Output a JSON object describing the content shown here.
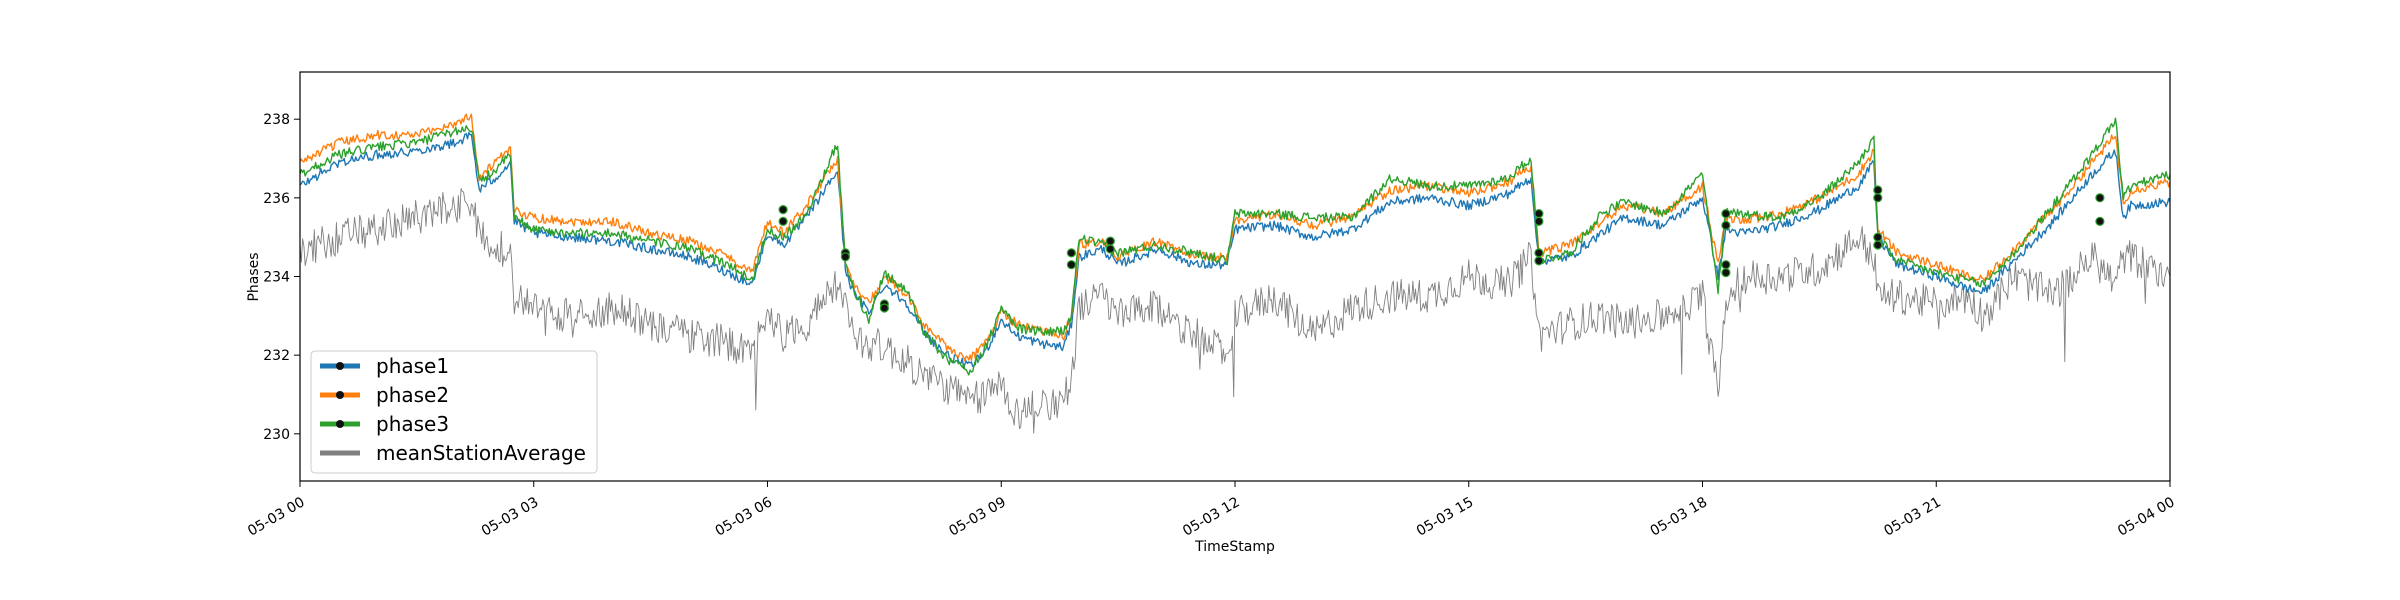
{
  "chart_data": {
    "type": "line",
    "xlabel": "TimeStamp",
    "ylabel": "Phases",
    "x_ticks": [
      "05-03 00",
      "05-03 03",
      "05-03 06",
      "05-03 09",
      "05-03 12",
      "05-03 15",
      "05-03 18",
      "05-03 21",
      "05-04 00"
    ],
    "x_range_hours": [
      0,
      24
    ],
    "y_ticks": [
      230,
      232,
      234,
      236,
      238
    ],
    "ylim": [
      228.8,
      239.2
    ],
    "grid": false,
    "legend_position": "lower-left",
    "series": [
      {
        "name": "phase1",
        "color": "#1f77b4",
        "x": [
          0.0,
          0.5,
          1.0,
          1.5,
          2.0,
          2.2,
          2.3,
          2.5,
          2.7,
          2.75,
          3.0,
          3.5,
          4.0,
          4.5,
          5.0,
          5.5,
          5.8,
          6.0,
          6.2,
          6.5,
          6.9,
          7.0,
          7.1,
          7.3,
          7.5,
          7.8,
          8.0,
          8.3,
          8.6,
          8.8,
          9.0,
          9.2,
          9.5,
          9.8,
          9.9,
          10.0,
          10.3,
          10.5,
          11.0,
          11.5,
          11.9,
          12.0,
          12.5,
          13.0,
          13.5,
          14.0,
          14.5,
          15.0,
          15.5,
          15.8,
          15.9,
          16.3,
          16.7,
          17.0,
          17.5,
          18.0,
          18.2,
          18.3,
          18.5,
          19.0,
          19.5,
          20.0,
          20.2,
          20.25,
          20.5,
          21.0,
          21.4,
          21.6,
          22.0,
          22.5,
          23.0,
          23.3,
          23.4,
          23.5,
          24.0
        ],
        "y": [
          236.3,
          236.9,
          237.1,
          237.2,
          237.4,
          237.6,
          236.2,
          236.5,
          236.9,
          235.4,
          235.1,
          235.0,
          234.9,
          234.7,
          234.5,
          234.1,
          233.8,
          235.1,
          234.8,
          235.5,
          236.7,
          234.2,
          233.6,
          233.1,
          233.8,
          233.3,
          232.6,
          232.0,
          231.7,
          232.1,
          232.9,
          232.5,
          232.3,
          232.2,
          232.8,
          234.5,
          234.7,
          234.3,
          234.7,
          234.3,
          234.3,
          235.2,
          235.3,
          235.0,
          235.2,
          235.9,
          236.0,
          235.8,
          236.1,
          236.5,
          234.4,
          234.5,
          235.1,
          235.5,
          235.3,
          236.0,
          234.0,
          235.2,
          235.1,
          235.3,
          235.7,
          236.3,
          236.9,
          235.0,
          234.3,
          234.0,
          233.7,
          233.6,
          234.4,
          235.4,
          236.6,
          237.2,
          235.5,
          235.8,
          235.9
        ]
      },
      {
        "name": "phase2",
        "color": "#ff7f0e",
        "x": [
          0.0,
          0.5,
          1.0,
          1.5,
          2.0,
          2.2,
          2.3,
          2.5,
          2.7,
          2.75,
          3.0,
          3.5,
          4.0,
          4.5,
          5.0,
          5.5,
          5.8,
          6.0,
          6.2,
          6.5,
          6.9,
          7.0,
          7.1,
          7.3,
          7.5,
          7.8,
          8.0,
          8.3,
          8.6,
          8.8,
          9.0,
          9.2,
          9.5,
          9.8,
          9.9,
          10.0,
          10.3,
          10.5,
          11.0,
          11.5,
          11.9,
          12.0,
          12.5,
          13.0,
          13.5,
          14.0,
          14.5,
          15.0,
          15.5,
          15.8,
          15.9,
          16.3,
          16.7,
          17.0,
          17.5,
          18.0,
          18.2,
          18.3,
          18.5,
          19.0,
          19.5,
          20.0,
          20.2,
          20.25,
          20.5,
          21.0,
          21.4,
          21.6,
          22.0,
          22.5,
          23.0,
          23.3,
          23.4,
          23.5,
          24.0
        ],
        "y": [
          236.9,
          237.4,
          237.6,
          237.6,
          237.9,
          238.1,
          236.5,
          236.9,
          237.2,
          235.7,
          235.5,
          235.4,
          235.4,
          235.1,
          234.9,
          234.5,
          234.1,
          235.4,
          235.1,
          235.8,
          237.0,
          234.4,
          233.8,
          233.3,
          234.0,
          233.5,
          232.8,
          232.2,
          231.9,
          232.3,
          233.1,
          232.8,
          232.6,
          232.5,
          233.0,
          234.8,
          234.9,
          234.5,
          234.9,
          234.5,
          234.5,
          235.4,
          235.6,
          235.3,
          235.5,
          236.2,
          236.3,
          236.1,
          236.4,
          236.8,
          234.6,
          234.8,
          235.4,
          235.8,
          235.6,
          236.3,
          234.3,
          235.5,
          235.4,
          235.6,
          236.0,
          236.6,
          237.2,
          235.2,
          234.6,
          234.3,
          234.0,
          233.9,
          234.7,
          235.7,
          236.9,
          237.6,
          235.9,
          236.2,
          236.4
        ]
      },
      {
        "name": "phase3",
        "color": "#2ca02c",
        "x": [
          0.0,
          0.5,
          1.0,
          1.5,
          2.0,
          2.2,
          2.3,
          2.5,
          2.7,
          2.75,
          3.0,
          3.5,
          4.0,
          4.5,
          5.0,
          5.5,
          5.8,
          6.0,
          6.2,
          6.5,
          6.9,
          7.0,
          7.1,
          7.3,
          7.5,
          7.8,
          8.0,
          8.3,
          8.6,
          8.8,
          9.0,
          9.2,
          9.5,
          9.8,
          9.9,
          10.0,
          10.3,
          10.5,
          11.0,
          11.5,
          11.9,
          12.0,
          12.5,
          13.0,
          13.5,
          14.0,
          14.5,
          15.0,
          15.5,
          15.8,
          15.9,
          16.3,
          16.7,
          17.0,
          17.5,
          18.0,
          18.2,
          18.3,
          18.5,
          19.0,
          19.5,
          20.0,
          20.2,
          20.25,
          20.5,
          21.0,
          21.4,
          21.6,
          22.0,
          22.5,
          23.0,
          23.3,
          23.4,
          23.5,
          24.0
        ],
        "y": [
          236.6,
          237.1,
          237.3,
          237.4,
          237.7,
          237.8,
          236.4,
          236.7,
          237.1,
          235.5,
          235.2,
          235.1,
          235.1,
          234.9,
          234.7,
          234.3,
          233.9,
          235.2,
          235.0,
          235.6,
          237.4,
          234.3,
          233.7,
          232.9,
          234.1,
          233.6,
          232.6,
          231.9,
          231.6,
          232.2,
          233.2,
          232.7,
          232.6,
          232.6,
          233.0,
          235.0,
          234.8,
          234.6,
          234.8,
          234.6,
          234.4,
          235.6,
          235.6,
          235.5,
          235.5,
          236.5,
          236.3,
          236.3,
          236.5,
          237.0,
          234.4,
          234.6,
          235.6,
          235.9,
          235.6,
          236.6,
          233.6,
          235.7,
          235.6,
          235.5,
          236.0,
          236.9,
          237.5,
          235.0,
          234.4,
          234.1,
          233.9,
          233.8,
          234.6,
          235.8,
          237.1,
          238.0,
          236.0,
          236.3,
          236.6
        ]
      },
      {
        "name": "meanStationAverage",
        "color": "#808080",
        "x": [
          0.0,
          0.5,
          1.0,
          1.5,
          2.0,
          2.2,
          2.3,
          2.5,
          2.7,
          2.75,
          3.0,
          3.5,
          4.0,
          4.5,
          5.0,
          5.5,
          5.8,
          6.0,
          6.2,
          6.5,
          6.9,
          7.0,
          7.1,
          7.3,
          7.5,
          7.8,
          8.0,
          8.3,
          8.6,
          8.8,
          9.0,
          9.2,
          9.5,
          9.8,
          9.9,
          10.0,
          10.3,
          10.5,
          11.0,
          11.5,
          11.9,
          12.0,
          12.5,
          13.0,
          13.5,
          14.0,
          14.5,
          15.0,
          15.5,
          15.8,
          15.9,
          16.3,
          16.7,
          17.0,
          17.5,
          18.0,
          18.2,
          18.3,
          18.5,
          19.0,
          19.5,
          20.0,
          20.2,
          20.25,
          20.5,
          21.0,
          21.4,
          21.6,
          22.0,
          22.5,
          23.0,
          23.3,
          23.4,
          23.5,
          24.0
        ],
        "y": [
          234.6,
          235.0,
          235.2,
          235.5,
          235.8,
          236.0,
          235.0,
          234.8,
          234.6,
          233.5,
          233.2,
          233.0,
          233.2,
          232.8,
          232.5,
          232.3,
          232.0,
          233.2,
          232.5,
          232.8,
          233.8,
          233.2,
          232.5,
          232.3,
          232.2,
          231.8,
          231.5,
          231.2,
          230.8,
          231.0,
          231.3,
          230.5,
          230.8,
          230.8,
          231.5,
          233.2,
          233.5,
          233.0,
          233.2,
          232.5,
          232.0,
          233.0,
          233.5,
          232.5,
          233.2,
          233.5,
          233.5,
          234.0,
          233.8,
          234.5,
          232.5,
          232.8,
          233.0,
          232.8,
          233.0,
          233.5,
          231.0,
          233.5,
          234.0,
          234.0,
          234.2,
          235.0,
          234.5,
          233.5,
          233.5,
          233.3,
          233.5,
          233.0,
          234.0,
          233.5,
          234.5,
          233.8,
          234.5,
          234.5,
          234.0
        ]
      }
    ],
    "markers": [
      {
        "x": 6.2,
        "y": 235.7
      },
      {
        "x": 6.2,
        "y": 235.4
      },
      {
        "x": 7.0,
        "y": 234.6
      },
      {
        "x": 7.0,
        "y": 234.5
      },
      {
        "x": 7.5,
        "y": 233.3
      },
      {
        "x": 7.5,
        "y": 233.2
      },
      {
        "x": 9.9,
        "y": 234.6
      },
      {
        "x": 9.9,
        "y": 234.3
      },
      {
        "x": 10.4,
        "y": 234.9
      },
      {
        "x": 10.4,
        "y": 234.7
      },
      {
        "x": 15.9,
        "y": 235.6
      },
      {
        "x": 15.9,
        "y": 235.4
      },
      {
        "x": 15.9,
        "y": 234.6
      },
      {
        "x": 15.9,
        "y": 234.4
      },
      {
        "x": 18.3,
        "y": 235.6
      },
      {
        "x": 18.3,
        "y": 235.3
      },
      {
        "x": 18.3,
        "y": 234.3
      },
      {
        "x": 18.3,
        "y": 234.1
      },
      {
        "x": 20.25,
        "y": 236.2
      },
      {
        "x": 20.25,
        "y": 236.0
      },
      {
        "x": 20.25,
        "y": 235.0
      },
      {
        "x": 20.25,
        "y": 234.8
      },
      {
        "x": 23.1,
        "y": 236.0
      },
      {
        "x": 23.1,
        "y": 235.4
      }
    ]
  }
}
